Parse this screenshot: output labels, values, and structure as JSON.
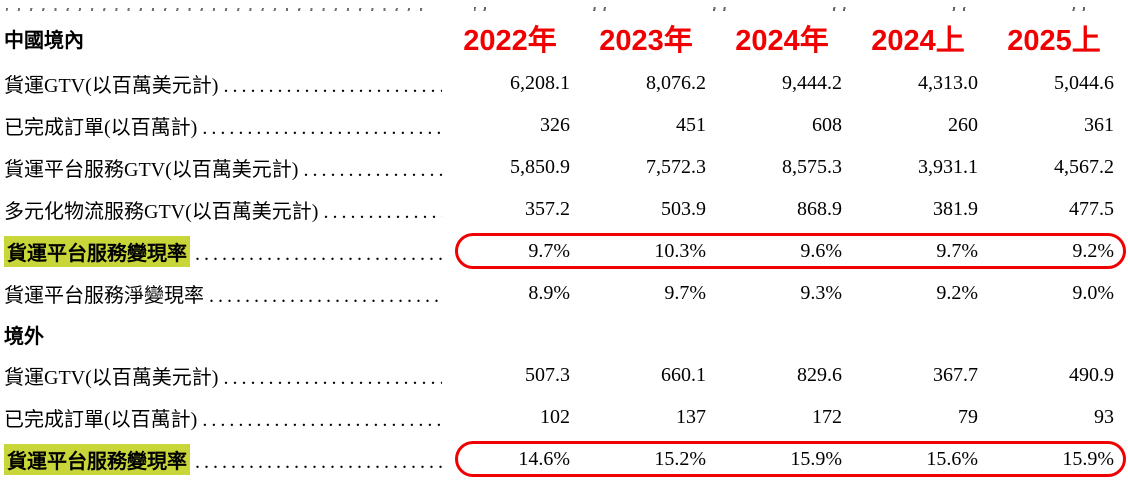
{
  "colors": {
    "accent_red": "#f00000",
    "highlight_yellow": "#c8d63a"
  },
  "columns": [
    "2022年",
    "2023年",
    "2024年",
    "2024上",
    "2025上"
  ],
  "sections": [
    {
      "title": "中國境內",
      "rows": [
        {
          "label": "貨運GTV(以百萬美元計)",
          "values": [
            "6,208.1",
            "8,076.2",
            "9,444.2",
            "4,313.0",
            "5,044.6"
          ],
          "highlight": false,
          "circled": false
        },
        {
          "label": "已完成訂單(以百萬計)",
          "values": [
            "326",
            "451",
            "608",
            "260",
            "361"
          ],
          "highlight": false,
          "circled": false
        },
        {
          "label": "貨運平台服務GTV(以百萬美元計)",
          "values": [
            "5,850.9",
            "7,572.3",
            "8,575.3",
            "3,931.1",
            "4,567.2"
          ],
          "highlight": false,
          "circled": false
        },
        {
          "label": "多元化物流服務GTV(以百萬美元計)",
          "values": [
            "357.2",
            "503.9",
            "868.9",
            "381.9",
            "477.5"
          ],
          "highlight": false,
          "circled": false
        },
        {
          "label": "貨運平台服務變現率",
          "values": [
            "9.7%",
            "10.3%",
            "9.6%",
            "9.7%",
            "9.2%"
          ],
          "highlight": true,
          "circled": true
        },
        {
          "label": "貨運平台服務淨變現率",
          "values": [
            "8.9%",
            "9.7%",
            "9.3%",
            "9.2%",
            "9.0%"
          ],
          "highlight": false,
          "circled": false
        }
      ]
    },
    {
      "title": "境外",
      "rows": [
        {
          "label": "貨運GTV(以百萬美元計)",
          "values": [
            "507.3",
            "660.1",
            "829.6",
            "367.7",
            "490.9"
          ],
          "highlight": false,
          "circled": false
        },
        {
          "label": "已完成訂單(以百萬計)",
          "values": [
            "102",
            "137",
            "172",
            "79",
            "93"
          ],
          "highlight": false,
          "circled": false
        },
        {
          "label": "貨運平台服務變現率",
          "values": [
            "14.6%",
            "15.2%",
            "15.9%",
            "15.6%",
            "15.9%"
          ],
          "highlight": true,
          "circled": true
        }
      ]
    }
  ]
}
